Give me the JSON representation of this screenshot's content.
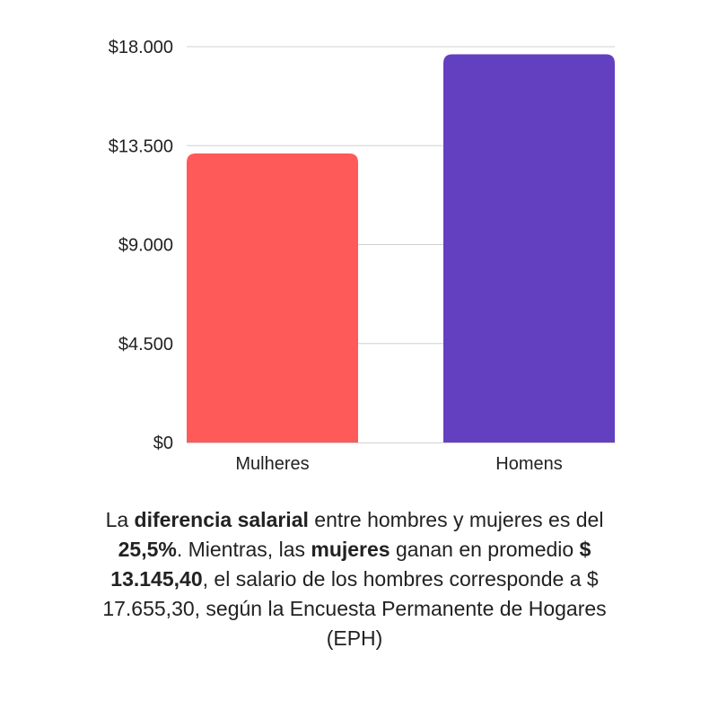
{
  "chart_data": {
    "type": "bar",
    "categories": [
      "Mulheres",
      "Homens"
    ],
    "values": [
      13145.4,
      17655.3
    ],
    "colors": [
      "#ff5a5a",
      "#6340c0"
    ],
    "ylim": [
      0,
      18000
    ],
    "yticks": [
      0,
      4500,
      9000,
      13500,
      18000
    ],
    "ytick_labels": [
      "$0",
      "$4.500",
      "$9.000",
      "$13.500",
      "$18.000"
    ],
    "grid": true,
    "gridline_color": "#d0d0d0",
    "title": "",
    "xlabel": "",
    "ylabel": ""
  },
  "caption": {
    "t1": "La ",
    "b1": "diferencia salarial",
    "t2": " entre hombres y mujeres es del ",
    "b2": "25,5%",
    "t3": ". Mientras, las ",
    "b3": "mujeres",
    "t4": " ganan en promedio ",
    "b4": "$ 13.145,40",
    "t5": ", el salario de los hombres corresponde a $ 17.655,30, según la Encuesta Permanente de Hogares (EPH)"
  }
}
